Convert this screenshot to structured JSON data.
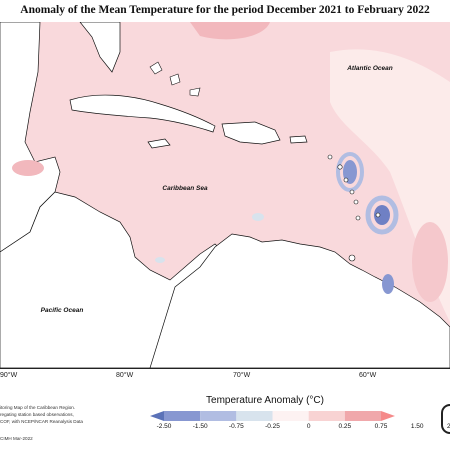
{
  "title": "Anomaly of the Mean Temperature for the period December 2021 to February 2022",
  "labels": {
    "atlantic": "Atlantic Ocean",
    "caribbean": "Caribbean Sea",
    "pacific": "Pacific Ocean"
  },
  "longitudes": [
    "90°W",
    "80°W",
    "70°W",
    "60°W"
  ],
  "notes": [
    "itoring Map of the Caribbean Region.",
    "regating station based observations,",
    "COF, with NCEP/NCAR Reanalysis Data"
  ],
  "credit": "CIMH Mar-2022",
  "colorbar": {
    "title": "Temperature Anomaly (°C)",
    "ticks": [
      "-2.50",
      "-1.50",
      "-0.75",
      "-0.25",
      "0",
      "0.25",
      "0.75",
      "1.50",
      "2.50"
    ],
    "colors": [
      "#5b72b8",
      "#8797d1",
      "#b1bde2",
      "#d8e3ed",
      "#fdf2f2",
      "#f8d3d3",
      "#f0a8ab",
      "#f58a8a"
    ]
  },
  "palette": {
    "ocean_base": "#f9d9dc",
    "anomaly_light": "#fcebea",
    "anomaly_medium": "#f2b8bd",
    "land": "#ffffff",
    "coast": "#111111"
  }
}
